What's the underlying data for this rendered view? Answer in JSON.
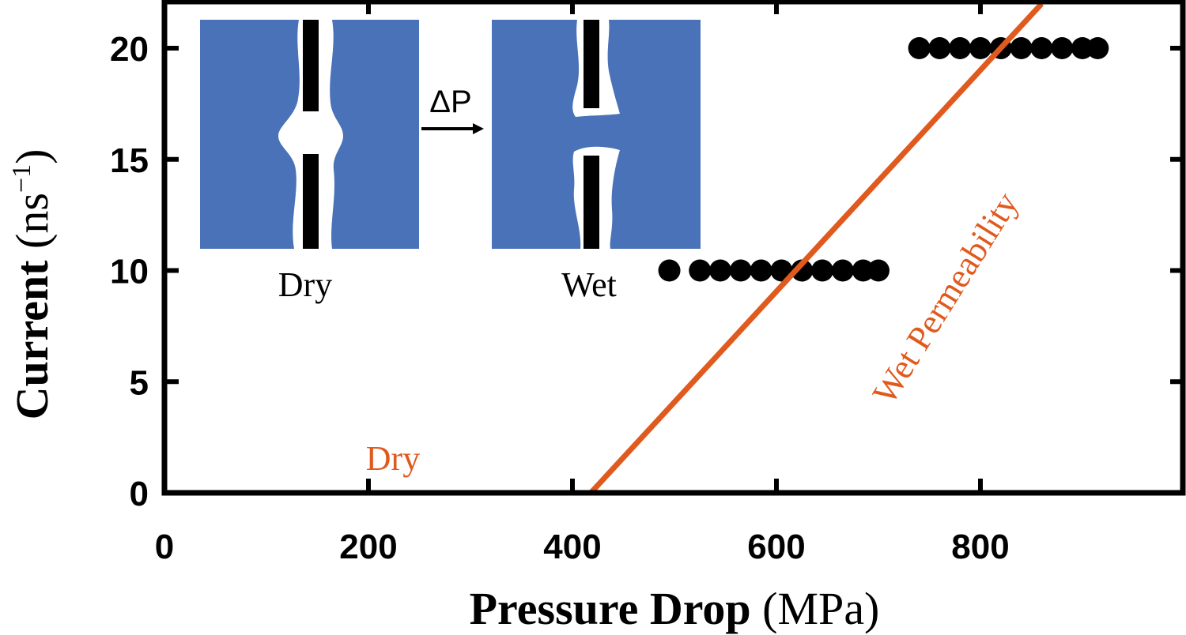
{
  "chart_data": {
    "type": "line",
    "xlabel": "Pressure Drop",
    "xlabel_unit": "(MPa)",
    "ylabel": "Current",
    "ylabel_unit": "(ns",
    "ylabel_exponent": "−1",
    "ylabel_close": ")",
    "xlim": [
      0,
      1000
    ],
    "ylim": [
      0,
      22
    ],
    "x_ticks": [
      0,
      200,
      400,
      600,
      800
    ],
    "y_ticks": [
      0,
      5,
      10,
      15,
      20
    ],
    "colors": {
      "line": "#e05a1e",
      "points": "#000000",
      "inset_fill": "#4a72b8"
    },
    "series": [
      {
        "name": "Dry",
        "kind": "line",
        "points": [
          [
            0,
            0
          ],
          [
            418,
            0
          ]
        ]
      },
      {
        "name": "Wet Permeability",
        "kind": "line",
        "points": [
          [
            418,
            0
          ],
          [
            860,
            22
          ]
        ]
      },
      {
        "kind": "scatter",
        "points": [
          [
            495,
            10
          ],
          [
            525,
            10
          ],
          [
            545,
            10
          ],
          [
            565,
            10
          ],
          [
            585,
            10
          ],
          [
            605,
            10
          ],
          [
            625,
            10
          ],
          [
            645,
            10
          ],
          [
            665,
            10
          ],
          [
            685,
            10
          ],
          [
            700,
            10
          ],
          [
            740,
            20
          ],
          [
            760,
            20
          ],
          [
            780,
            20
          ],
          [
            800,
            20
          ],
          [
            820,
            20
          ],
          [
            840,
            20
          ],
          [
            860,
            20
          ],
          [
            880,
            20
          ],
          [
            900,
            20
          ],
          [
            915,
            20
          ]
        ]
      }
    ],
    "annotations": {
      "dry_line_label": "Dry",
      "wet_line_label": "Wet Permeability"
    },
    "inset": {
      "left_label": "Dry",
      "right_label": "Wet",
      "arrow_label": "ΔP"
    }
  }
}
